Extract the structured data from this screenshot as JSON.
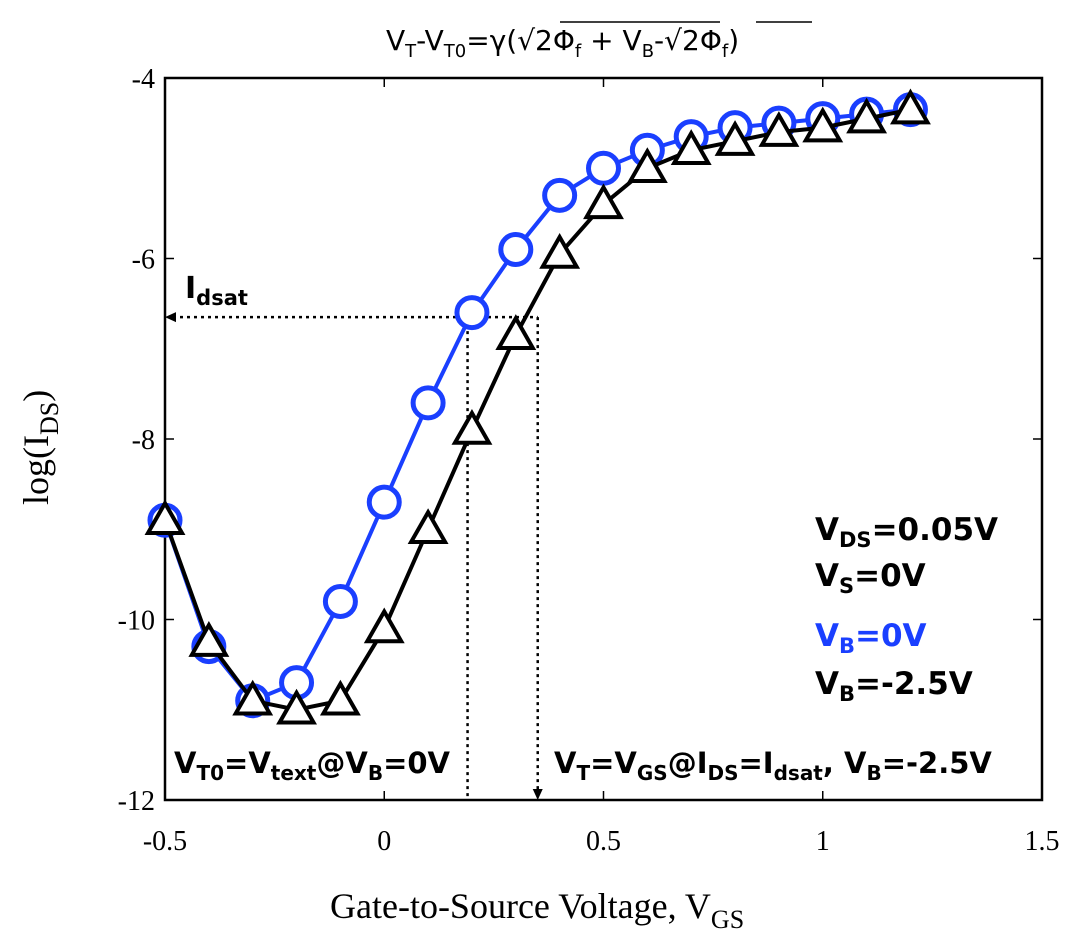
{
  "chart_data": {
    "type": "line",
    "title": {
      "v": "V",
      "t": "T",
      "minus": "-",
      "t0": "T0",
      "eq": "=",
      "gamma": "γ(",
      "sqrt": "√",
      "two": "2",
      "phi": "Φ",
      "f": "f",
      "plus": " + ",
      "b": "B",
      "close": ")"
    },
    "xlabel": {
      "text": "Gate-to-Source Voltage, V",
      "sub": "GS"
    },
    "ylabel": {
      "text": "log(I",
      "sub": "DS",
      "close": ")"
    },
    "xlim": [
      -0.5,
      1.5
    ],
    "ylim": [
      -12,
      -4
    ],
    "xticks": [
      -0.5,
      0,
      0.5,
      1,
      1.5
    ],
    "xtick_labels": [
      "-0.5",
      "0",
      "0.5",
      "1",
      "1.5"
    ],
    "yticks": [
      -12,
      -10,
      -8,
      -6,
      -4
    ],
    "ytick_labels": [
      "-12",
      "-10",
      "-8",
      "-6",
      "-4"
    ],
    "grid": false,
    "series": [
      {
        "name": "V_B=0V",
        "color": "#1a3fff",
        "marker": "circle",
        "x": [
          -0.5,
          -0.4,
          -0.3,
          -0.2,
          -0.1,
          0.0,
          0.1,
          0.2,
          0.3,
          0.4,
          0.5,
          0.6,
          0.7,
          0.8,
          0.9,
          1.0,
          1.1,
          1.2
        ],
        "y": [
          -8.9,
          -10.3,
          -10.9,
          -10.7,
          -9.8,
          -8.7,
          -7.6,
          -6.6,
          -5.9,
          -5.3,
          -5.0,
          -4.8,
          -4.65,
          -4.55,
          -4.5,
          -4.45,
          -4.4,
          -4.35
        ]
      },
      {
        "name": "V_B=-2.5V",
        "color": "#000000",
        "marker": "triangle",
        "x": [
          -0.5,
          -0.4,
          -0.3,
          -0.2,
          -0.1,
          0.0,
          0.1,
          0.2,
          0.3,
          0.4,
          0.5,
          0.6,
          0.7,
          0.8,
          0.9,
          1.0,
          1.1,
          1.2
        ],
        "y": [
          -8.9,
          -10.25,
          -10.9,
          -11.0,
          -10.9,
          -10.1,
          -9.0,
          -7.9,
          -6.85,
          -5.95,
          -5.4,
          -5.0,
          -4.8,
          -4.7,
          -4.6,
          -4.55,
          -4.45,
          -4.35
        ]
      }
    ],
    "annotations": {
      "idsat": {
        "main": "I",
        "sub": "dsat",
        "y": -6.65,
        "x_from": -0.5,
        "x_to": 0.35
      },
      "vt0_line_x": 0.19,
      "vt_line_x": 0.35,
      "vt0_label": {
        "v1": "V",
        "s1": "T0",
        "m1": "=V",
        "s2": "text",
        "m2": "@V",
        "s3": "B",
        "m3": "=0V"
      },
      "vt_label": {
        "v1": "V",
        "s1": "T",
        "m1": "=V",
        "s2": "GS",
        "m2": "@I",
        "s3": "DS",
        "m3": "=I",
        "s4": "dsat",
        "m4": ", V",
        "s5": "B",
        "m5": "=-2.5V"
      },
      "legend": {
        "vds": {
          "main": "V",
          "sub": "DS",
          "rest": "=0.05V"
        },
        "vs": {
          "main": "V",
          "sub": "S",
          "rest": "=0V"
        },
        "vb0": {
          "main": "V",
          "sub": "B",
          "rest": "=0V",
          "color": "#1a3fff"
        },
        "vb25": {
          "main": "V",
          "sub": "B",
          "rest": "=-2.5V",
          "color": "#000000"
        }
      }
    }
  }
}
